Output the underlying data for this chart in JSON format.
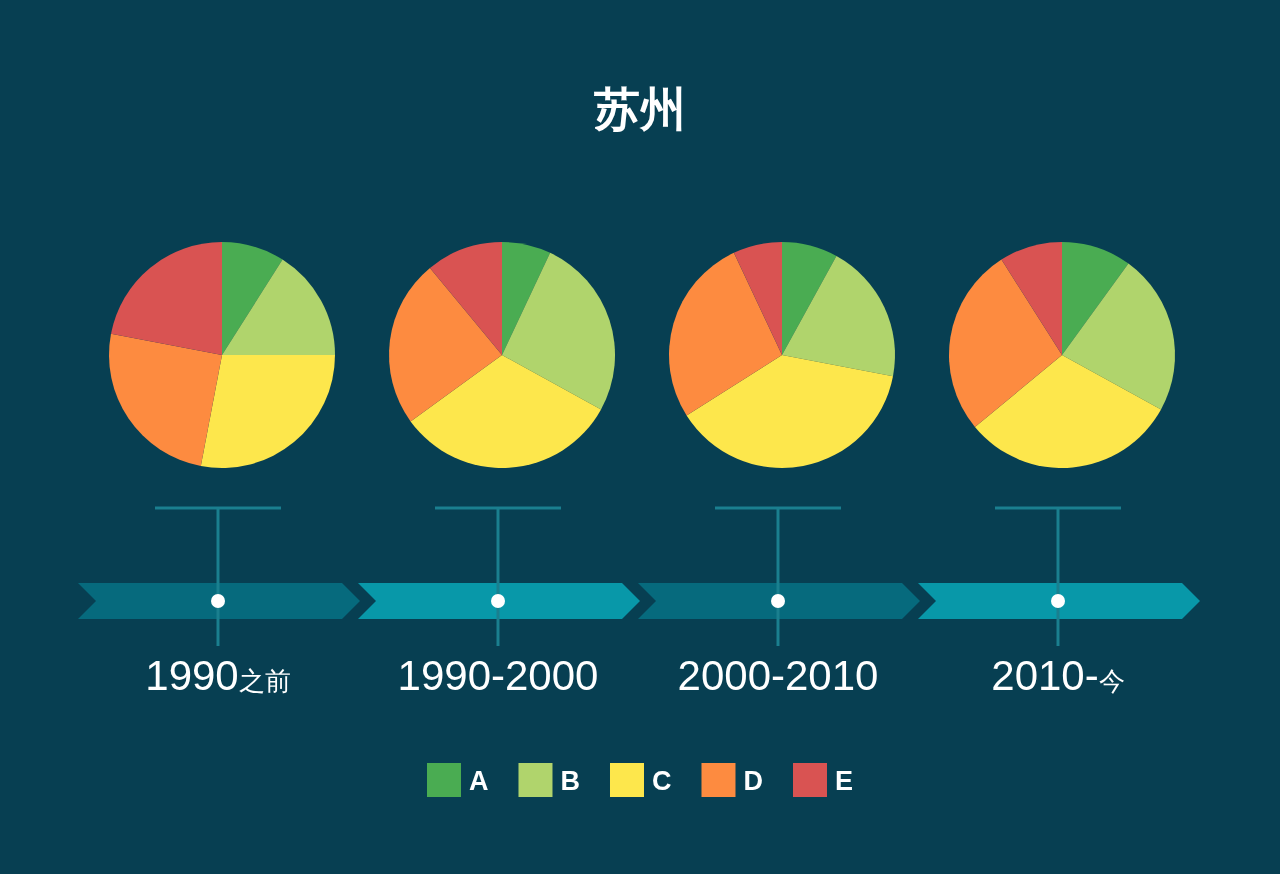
{
  "chart_data": {
    "type": "pie",
    "title": "苏州",
    "categories": [
      "A",
      "B",
      "C",
      "D",
      "E"
    ],
    "colors": [
      "#4aac52",
      "#b0d46c",
      "#fde74c",
      "#fd8b40",
      "#d95352"
    ],
    "legend": "bottom",
    "series": [
      {
        "name": "1990之前",
        "values": [
          9,
          16,
          28,
          25,
          22
        ]
      },
      {
        "name": "1990-2000",
        "values": [
          7,
          26,
          32,
          24,
          11
        ]
      },
      {
        "name": "2000-2010",
        "values": [
          8,
          20,
          38,
          27,
          7
        ]
      },
      {
        "name": "2010-今",
        "values": [
          10,
          23,
          31,
          27,
          9
        ]
      }
    ]
  }
}
